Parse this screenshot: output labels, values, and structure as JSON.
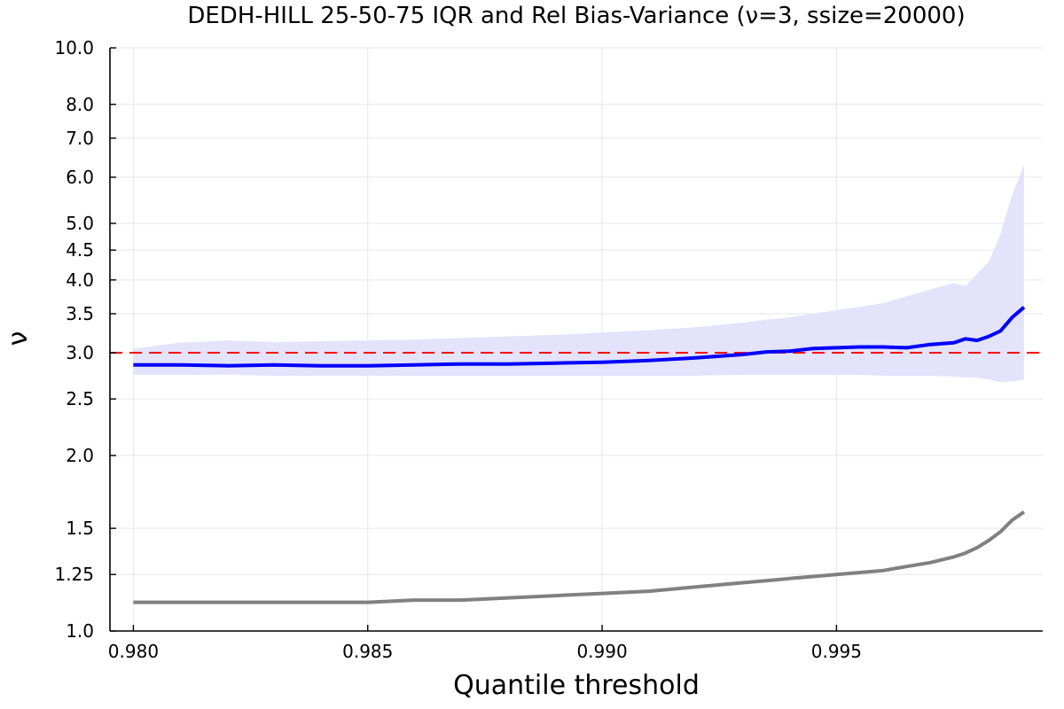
{
  "chart_data": {
    "type": "line",
    "title": "DEDH-HILL 25-50-75 IQR and Rel Bias-Variance (ν=3, ssize=20000)",
    "xlabel": "Quantile threshold",
    "ylabel": "ν",
    "xlim": [
      0.9795,
      0.9994
    ],
    "ylim": [
      1.0,
      10.0
    ],
    "yscale": "log",
    "grid": true,
    "x_ticks": [
      0.98,
      0.985,
      0.99,
      0.995
    ],
    "x_tick_labels": [
      "0.980",
      "0.985",
      "0.990",
      "0.995"
    ],
    "y_ticks": [
      1.0,
      1.25,
      1.5,
      2.0,
      2.5,
      3.0,
      3.5,
      4.0,
      4.5,
      5.0,
      6.0,
      7.0,
      8.0,
      10.0
    ],
    "y_tick_labels": [
      "1.0",
      "1.25",
      "1.5",
      "2.0",
      "2.5",
      "3.0",
      "3.5",
      "4.0",
      "4.5",
      "5.0",
      "6.0",
      "7.0",
      "8.0",
      "10.0"
    ],
    "reference_line": {
      "y": 3.0,
      "color": "#ff0000",
      "style": "dashed"
    },
    "colors": {
      "median": "#0000ff",
      "band": "#e3e3fb",
      "relative": "#808080"
    },
    "x": [
      0.98,
      0.981,
      0.982,
      0.983,
      0.984,
      0.985,
      0.986,
      0.987,
      0.988,
      0.989,
      0.99,
      0.991,
      0.992,
      0.993,
      0.9935,
      0.994,
      0.9945,
      0.995,
      0.9955,
      0.996,
      0.9965,
      0.997,
      0.9975,
      0.99775,
      0.998,
      0.99825,
      0.9985,
      0.99875,
      0.999
    ],
    "series": [
      {
        "type": "band",
        "lower": [
          2.75,
          2.75,
          2.75,
          2.74,
          2.74,
          2.74,
          2.74,
          2.74,
          2.74,
          2.74,
          2.74,
          2.74,
          2.74,
          2.75,
          2.75,
          2.75,
          2.75,
          2.75,
          2.75,
          2.74,
          2.74,
          2.74,
          2.73,
          2.72,
          2.72,
          2.7,
          2.67,
          2.68,
          2.7
        ],
        "upper": [
          3.05,
          3.12,
          3.15,
          3.13,
          3.14,
          3.15,
          3.16,
          3.18,
          3.2,
          3.22,
          3.25,
          3.28,
          3.32,
          3.38,
          3.42,
          3.45,
          3.5,
          3.55,
          3.6,
          3.65,
          3.75,
          3.85,
          3.95,
          3.9,
          4.1,
          4.3,
          4.8,
          5.6,
          6.3
        ]
      },
      {
        "type": "line",
        "values": [
          2.86,
          2.86,
          2.85,
          2.86,
          2.85,
          2.85,
          2.86,
          2.87,
          2.87,
          2.88,
          2.89,
          2.91,
          2.94,
          2.98,
          3.01,
          3.02,
          3.05,
          3.06,
          3.07,
          3.07,
          3.06,
          3.1,
          3.12,
          3.17,
          3.15,
          3.2,
          3.27,
          3.45,
          3.59
        ]
      },
      {
        "type": "line",
        "values": [
          1.12,
          1.12,
          1.12,
          1.12,
          1.12,
          1.12,
          1.13,
          1.13,
          1.14,
          1.15,
          1.16,
          1.17,
          1.19,
          1.21,
          1.22,
          1.23,
          1.24,
          1.25,
          1.26,
          1.27,
          1.29,
          1.31,
          1.34,
          1.36,
          1.39,
          1.43,
          1.48,
          1.55,
          1.6
        ]
      }
    ]
  }
}
